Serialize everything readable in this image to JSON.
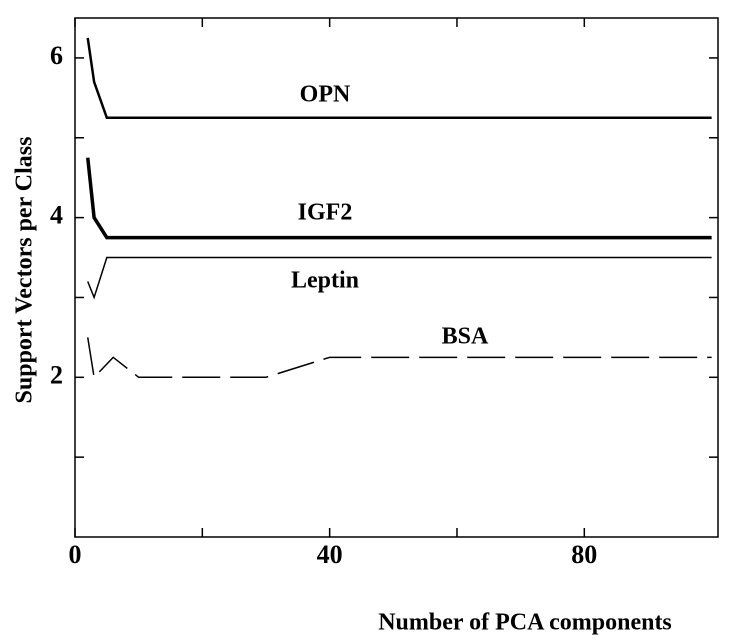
{
  "chart_data": {
    "type": "line",
    "x_label": "Number of PCA components",
    "y_label": "Support Vectors per Class",
    "xlim": [
      0,
      101
    ],
    "ylim": [
      0,
      6.5
    ],
    "xticks": [
      0,
      40,
      80
    ],
    "xminor_ticks": [
      20,
      60
    ],
    "yticks": [
      2,
      4,
      6
    ],
    "yminor_ticks": [
      1,
      3,
      5
    ],
    "annotations": [
      "OPN",
      "IGF2",
      "Leptin",
      "BSA"
    ],
    "series": [
      {
        "name": "OPN",
        "color": "#000000",
        "line_width": 2.5,
        "dash": false,
        "x": [
          2,
          3,
          5,
          100
        ],
        "values": [
          6.25,
          5.7,
          5.25,
          5.25
        ]
      },
      {
        "name": "IGF2",
        "color": "#000000",
        "line_width": 3.5,
        "dash": false,
        "x": [
          2,
          3,
          5,
          100
        ],
        "values": [
          4.75,
          4.0,
          3.75,
          3.75
        ]
      },
      {
        "name": "Leptin",
        "color": "#000000",
        "line_width": 1.5,
        "dash": false,
        "x": [
          2,
          3,
          5,
          100
        ],
        "values": [
          3.2,
          3.0,
          3.5,
          3.5
        ]
      },
      {
        "name": "BSA",
        "color": "#000000",
        "line_width": 1.5,
        "dash": true,
        "x": [
          2,
          3,
          6,
          10,
          30,
          40,
          100
        ],
        "values": [
          2.5,
          2.0,
          2.25,
          2.0,
          2.0,
          2.25,
          2.25
        ]
      }
    ]
  }
}
